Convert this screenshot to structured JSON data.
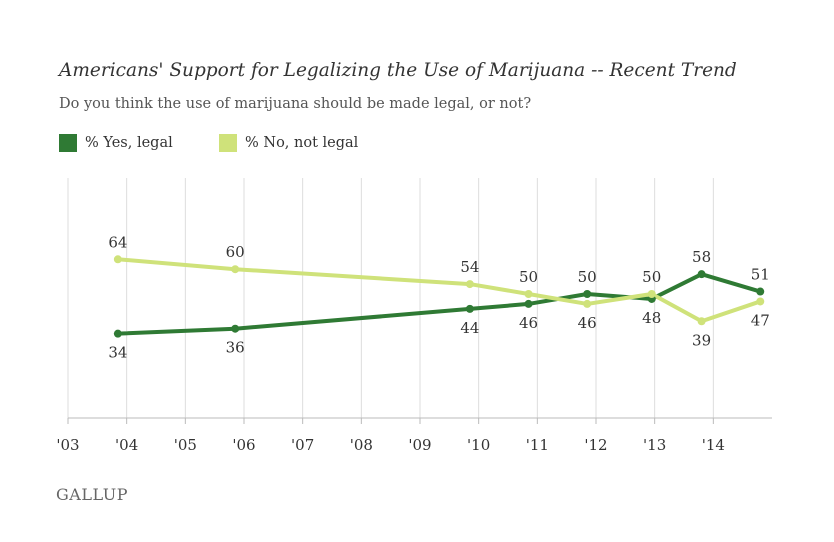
{
  "title": "Americans' Support for Legalizing the Use of Marijuana -- Recent Trend",
  "subtitle": "Do you think the use of marijuana should be made legal, or not?",
  "footer": "GALLUP",
  "colors": {
    "yes": "#2f7a34",
    "no": "#cfe27a",
    "grid": "#dddddd",
    "axis": "#bbbbbb"
  },
  "chart_data": {
    "type": "line",
    "title": "Americans' Support for Legalizing the Use of Marijuana -- Recent Trend",
    "subtitle": "Do you think the use of marijuana should be made legal, or not?",
    "x_ticks": [
      "'03",
      "'04",
      "'05",
      "'06",
      "'07",
      "'08",
      "'09",
      "'10",
      "'11",
      "'12",
      "'13",
      "'14"
    ],
    "x_range": [
      2003,
      2015
    ],
    "y_range": [
      0,
      100
    ],
    "legend": "top-left",
    "grid": "vertical",
    "series": [
      {
        "name": "% Yes, legal",
        "color": "#2f7a34",
        "label_position": [
          "below",
          "below",
          "below",
          "below",
          "above",
          "below",
          "above",
          "above"
        ],
        "points": [
          {
            "x": 2003.85,
            "y": 34
          },
          {
            "x": 2005.85,
            "y": 36
          },
          {
            "x": 2009.85,
            "y": 44
          },
          {
            "x": 2010.85,
            "y": 46
          },
          {
            "x": 2011.85,
            "y": 50
          },
          {
            "x": 2012.95,
            "y": 48
          },
          {
            "x": 2013.8,
            "y": 58
          },
          {
            "x": 2014.8,
            "y": 51
          }
        ]
      },
      {
        "name": "% No, not legal",
        "color": "#cfe27a",
        "label_position": [
          "above",
          "above",
          "above",
          "above",
          "below",
          "above",
          "below",
          "below"
        ],
        "points": [
          {
            "x": 2003.85,
            "y": 64
          },
          {
            "x": 2005.85,
            "y": 60
          },
          {
            "x": 2009.85,
            "y": 54
          },
          {
            "x": 2010.85,
            "y": 50
          },
          {
            "x": 2011.85,
            "y": 46
          },
          {
            "x": 2012.95,
            "y": 50
          },
          {
            "x": 2013.8,
            "y": 39
          },
          {
            "x": 2014.8,
            "y": 47
          }
        ]
      }
    ]
  }
}
